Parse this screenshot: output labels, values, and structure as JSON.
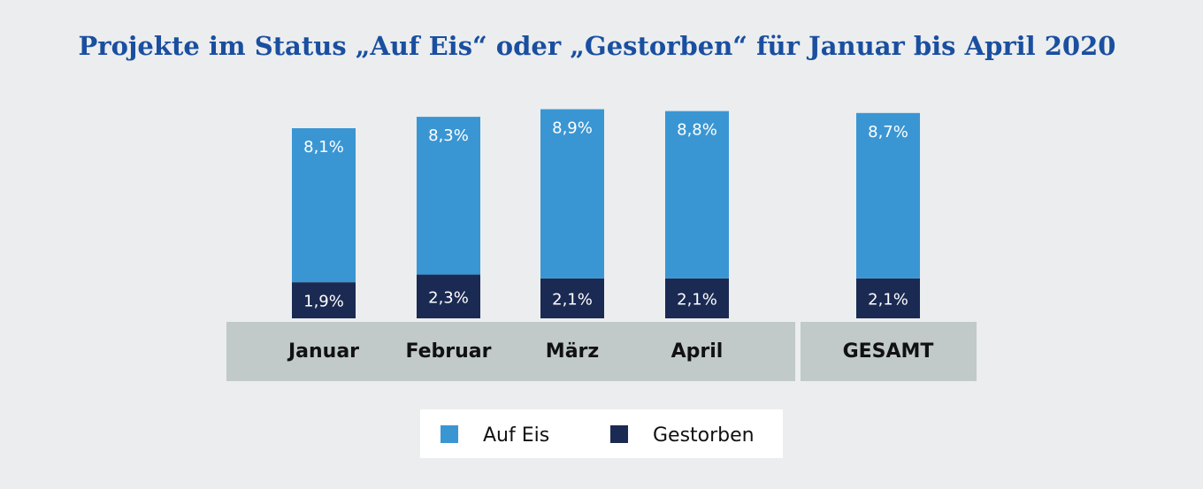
{
  "chart_data": {
    "type": "bar",
    "stacked": true,
    "title": "Projekte im Status „Auf Eis“ oder „Gestorben“ für Januar bis April 2020",
    "categories": [
      "Januar",
      "Februar",
      "März",
      "April",
      "GESAMT"
    ],
    "series": [
      {
        "name": "Gestorben",
        "color": "#1b2a52",
        "values": [
          1.9,
          2.3,
          2.1,
          2.1,
          2.1
        ],
        "labels": [
          "1,9%",
          "2,3%",
          "2,1%",
          "2,1%",
          "2,1%"
        ]
      },
      {
        "name": "Auf Eis",
        "color": "#3a96d3",
        "values": [
          8.1,
          8.3,
          8.9,
          8.8,
          8.7
        ],
        "labels": [
          "8,1%",
          "8,3%",
          "8,9%",
          "8,8%",
          "8,7%"
        ]
      }
    ],
    "legend": [
      "Auf Eis",
      "Gestorben"
    ],
    "legend_position": "bottom",
    "xlabel": "",
    "ylabel": "",
    "grid": false
  }
}
